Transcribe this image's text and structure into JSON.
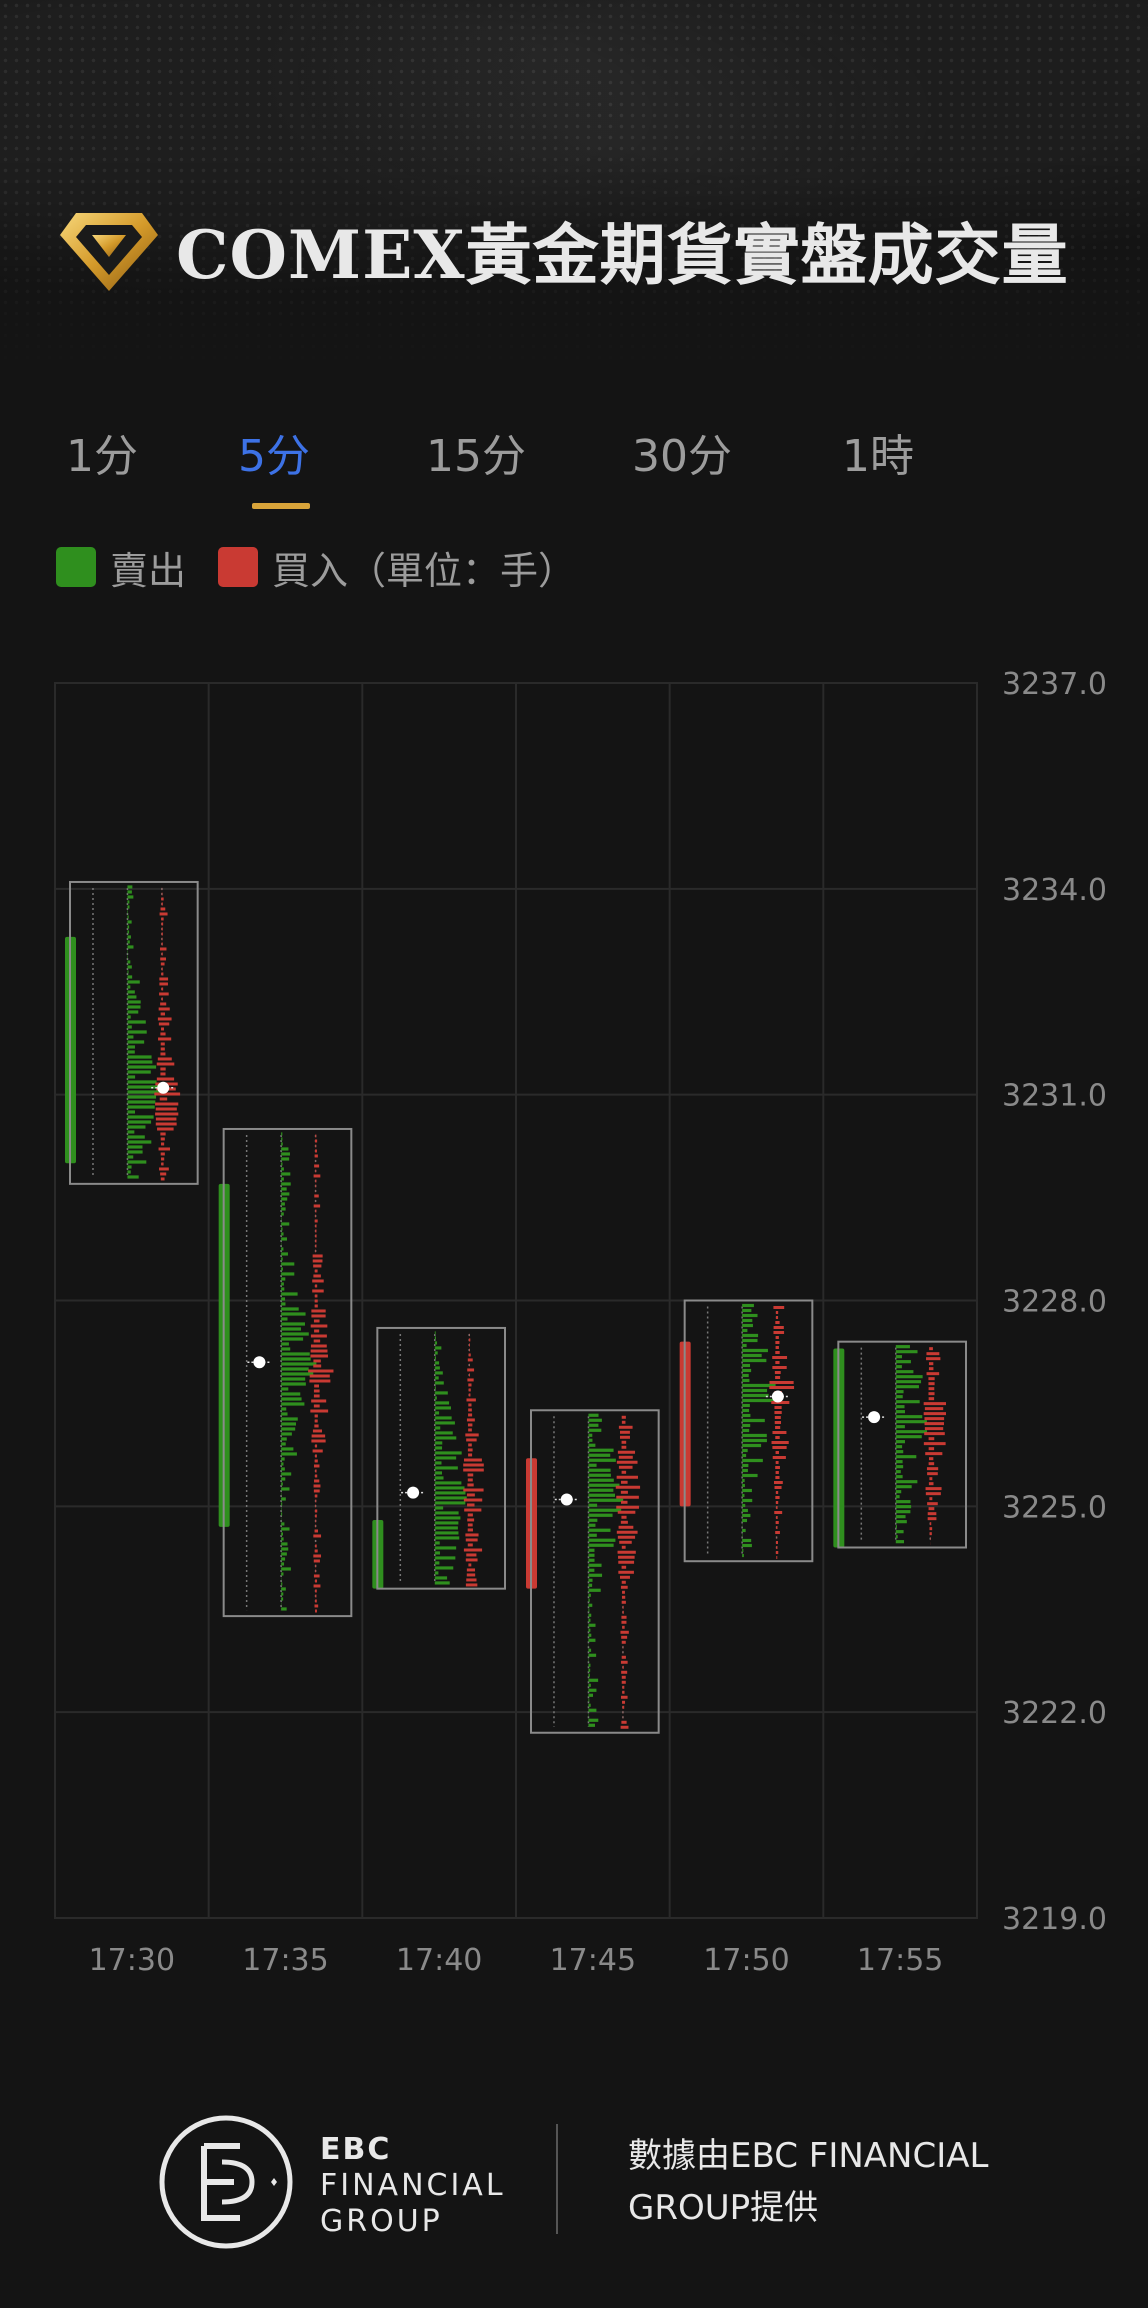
{
  "header": {
    "title": "COMEX黃金期貨實盤成交量"
  },
  "tabs": [
    {
      "label": "1分",
      "active": false
    },
    {
      "label": "5分",
      "active": true
    },
    {
      "label": "15分",
      "active": false
    },
    {
      "label": "30分",
      "active": false
    },
    {
      "label": "1時",
      "active": false
    }
  ],
  "legend": {
    "sell_label": "賣出",
    "buy_label": "買入（單位：手）"
  },
  "colors": {
    "sell": "#2f8f1e",
    "buy": "#c93a33",
    "accent": "#3d72e6",
    "underline": "#d9a43a",
    "background": "#141414"
  },
  "chart_data": {
    "type": "footprint",
    "x": [
      "17:30",
      "17:35",
      "17:40",
      "17:45",
      "17:50",
      "17:55"
    ],
    "y_ticks": [
      "3237.0",
      "3234.0",
      "3231.0",
      "3228.0",
      "3225.0",
      "3222.0",
      "3219.0"
    ],
    "ylim": [
      3219.0,
      3237.0
    ],
    "grid": true,
    "bars": [
      {
        "time": "17:30",
        "high": 3234.1,
        "low": 3229.7,
        "open": 3233.3,
        "close": 3230.0,
        "direction": "sell",
        "poc": 3231.1
      },
      {
        "time": "17:35",
        "high": 3230.5,
        "low": 3223.4,
        "open": 3229.7,
        "close": 3224.7,
        "direction": "sell",
        "poc": 3227.1
      },
      {
        "time": "17:40",
        "high": 3227.6,
        "low": 3223.8,
        "open": 3224.8,
        "close": 3223.8,
        "direction": "sell",
        "poc": 3225.2
      },
      {
        "time": "17:45",
        "high": 3226.4,
        "low": 3221.7,
        "open": 3223.8,
        "close": 3225.7,
        "direction": "buy",
        "poc": 3225.1
      },
      {
        "time": "17:50",
        "high": 3228.0,
        "low": 3224.2,
        "open": 3225.0,
        "close": 3227.4,
        "direction": "buy",
        "poc": 3226.6
      },
      {
        "time": "17:55",
        "high": 3227.4,
        "low": 3224.4,
        "open": 3227.3,
        "close": 3224.4,
        "direction": "sell",
        "poc": 3226.3
      }
    ]
  },
  "footer": {
    "brand_line1": "EBC",
    "brand_line2": "FINANCIAL",
    "brand_line3": "GROUP",
    "credit": "數據由EBC FINANCIAL GROUP提供"
  }
}
